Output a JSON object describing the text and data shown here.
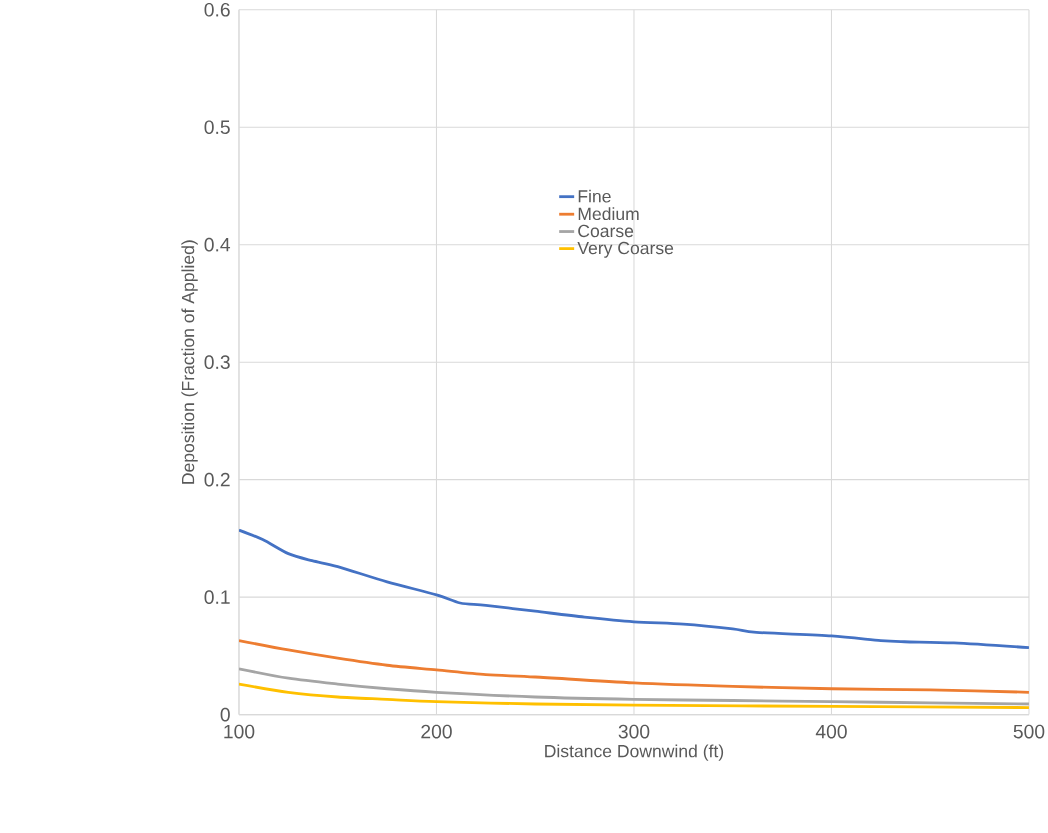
{
  "chart_data": {
    "type": "line",
    "xlabel": "Distance Downwind (ft)",
    "ylabel": "Deposition (Fraction of Applied)",
    "xlim": [
      100,
      500
    ],
    "xticks": [
      100,
      200,
      300,
      400,
      500
    ],
    "ylim": [
      0,
      0.6
    ],
    "yticks": [
      0,
      0.1,
      0.2,
      0.3,
      0.4,
      0.5,
      0.6
    ],
    "grid": true,
    "legend": "top",
    "marker": "none",
    "line_style": "solid",
    "series": [
      {
        "name": "Fine",
        "color": "#4472c4",
        "x": [
          100,
          112,
          125,
          137,
          150,
          175,
          200,
          212,
          225,
          250,
          275,
          300,
          325,
          350,
          362,
          400,
          425,
          437,
          462,
          500
        ],
        "values": [
          0.157,
          0.149,
          0.137,
          0.131,
          0.126,
          0.113,
          0.102,
          0.095,
          0.093,
          0.088,
          0.083,
          0.079,
          0.077,
          0.073,
          0.07,
          0.067,
          0.063,
          0.062,
          0.061,
          0.057
        ]
      },
      {
        "name": "Medium",
        "color": "#ed7d31",
        "x": [
          100,
          125,
          150,
          175,
          200,
          225,
          250,
          300,
          350,
          400,
          450,
          500
        ],
        "values": [
          0.063,
          0.055,
          0.048,
          0.042,
          0.038,
          0.034,
          0.032,
          0.027,
          0.024,
          0.022,
          0.021,
          0.019
        ]
      },
      {
        "name": "Coarse",
        "color": "#a5a5a5",
        "x": [
          100,
          125,
          150,
          175,
          200,
          250,
          300,
          350,
          400,
          450,
          500
        ],
        "values": [
          0.039,
          0.031,
          0.026,
          0.022,
          0.019,
          0.015,
          0.013,
          0.012,
          0.011,
          0.01,
          0.009
        ]
      },
      {
        "name": "Very Coarse",
        "color": "#ffc000",
        "x": [
          100,
          125,
          150,
          175,
          200,
          250,
          300,
          400,
          500
        ],
        "values": [
          0.026,
          0.019,
          0.015,
          0.013,
          0.011,
          0.009,
          0.008,
          0.007,
          0.006
        ]
      }
    ]
  }
}
